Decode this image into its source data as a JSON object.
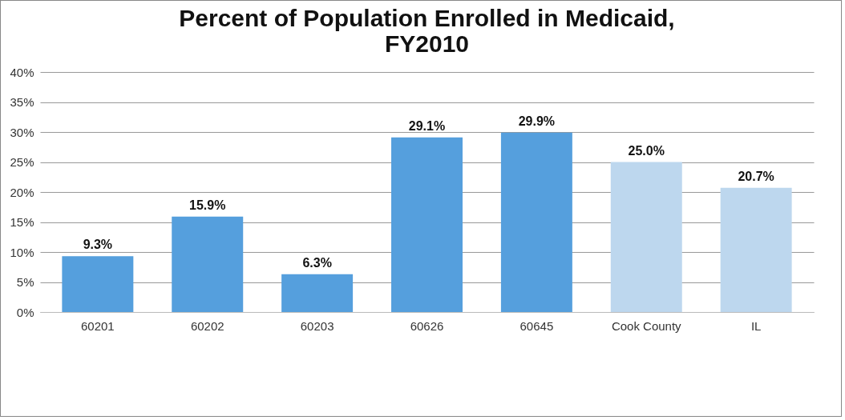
{
  "chart_data": {
    "type": "bar",
    "title": "Percent of Population Enrolled in Medicaid,\nFY2010",
    "categories": [
      "60201",
      "60202",
      "60203",
      "60626",
      "60645",
      "Cook County",
      "IL"
    ],
    "values": [
      9.3,
      15.9,
      6.3,
      29.1,
      29.9,
      25.0,
      20.7
    ],
    "colors": [
      "#559fdd",
      "#559fdd",
      "#559fdd",
      "#559fdd",
      "#559fdd",
      "#bdd7ee",
      "#bdd7ee"
    ],
    "value_labels": [
      "9.3%",
      "15.9%",
      "6.3%",
      "29.1%",
      "29.9%",
      "25.0%",
      "20.7%"
    ],
    "ylim": [
      0,
      40
    ],
    "yticks": [
      {
        "value": 0,
        "label": "0%"
      },
      {
        "value": 5,
        "label": "5%"
      },
      {
        "value": 10,
        "label": "10%"
      },
      {
        "value": 15,
        "label": "15%"
      },
      {
        "value": 20,
        "label": "20%"
      },
      {
        "value": 25,
        "label": "25%"
      },
      {
        "value": 30,
        "label": "30%"
      },
      {
        "value": 35,
        "label": "35%"
      },
      {
        "value": 40,
        "label": "40%"
      }
    ],
    "grid": "y",
    "legend": false
  }
}
